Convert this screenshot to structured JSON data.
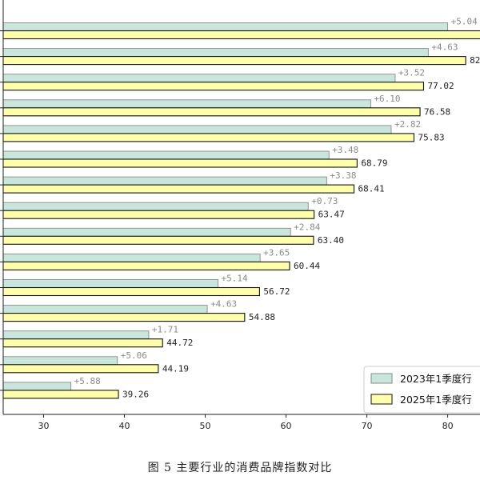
{
  "caption": "图 5 主要行业的消费品牌指数对比",
  "chart_data": {
    "type": "bar",
    "orientation": "horizontal",
    "title": "",
    "xlabel": "",
    "ylabel": "",
    "xlim": [
      25,
      84
    ],
    "xticks": [
      30,
      40,
      50,
      60,
      70,
      80
    ],
    "grid": false,
    "legend_position": "bottom-right",
    "categories": [
      "",
      "",
      "",
      "",
      "",
      "",
      "",
      "",
      "",
      "",
      "",
      "",
      "",
      "",
      ""
    ],
    "series": [
      {
        "name": "2023年1季度行",
        "color": "#c8e6dc",
        "values": [
          80.0,
          77.6,
          73.5,
          70.48,
          73.01,
          65.31,
          65.03,
          62.74,
          60.56,
          56.79,
          51.58,
          50.25,
          43.01,
          39.13,
          33.38
        ]
      },
      {
        "name": "2025年1季度行",
        "color": "#ffffaa",
        "values": [
          85.04,
          82.23,
          77.02,
          76.58,
          75.83,
          68.79,
          68.41,
          63.47,
          63.4,
          60.44,
          56.72,
          54.88,
          44.72,
          44.19,
          39.26
        ]
      }
    ],
    "value_labels": [
      "",
      "82",
      "77.02",
      "76.58",
      "75.83",
      "68.79",
      "68.41",
      "63.47",
      "63.40",
      "60.44",
      "56.72",
      "54.88",
      "44.72",
      "44.19",
      "39.26"
    ],
    "change_labels": [
      "+5.04",
      "+4.63",
      "+3.52",
      "+6.10",
      "+2.82",
      "+3.48",
      "+3.38",
      "+0.73",
      "+2.84",
      "+3.65",
      "+5.14",
      "+4.63",
      "+1.71",
      "+5.06",
      "+5.88"
    ]
  }
}
